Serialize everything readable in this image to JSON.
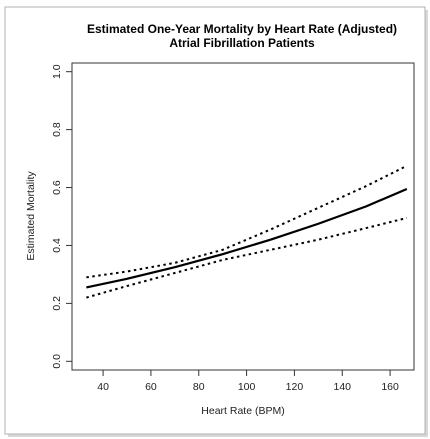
{
  "chart_data": {
    "type": "line",
    "title": [
      "Estimated One-Year Mortality by Heart Rate (Adjusted)",
      "Atrial Fibrillation Patients"
    ],
    "xlabel": "Heart Rate (BPM)",
    "ylabel": "Estimated Mortality",
    "xlim": [
      27,
      170
    ],
    "ylim": [
      -0.03,
      1.03
    ],
    "x_ticks": [
      40,
      60,
      80,
      100,
      120,
      140,
      160
    ],
    "y_ticks": [
      0.0,
      0.2,
      0.4,
      0.6,
      0.8,
      1.0
    ],
    "x_tick_labels": [
      "40",
      "60",
      "80",
      "100",
      "120",
      "140",
      "160"
    ],
    "y_tick_labels": [
      "0.0",
      "0.2",
      "0.4",
      "0.6",
      "0.8",
      "1.0"
    ],
    "grid": false,
    "series": [
      {
        "role": "estimate",
        "style": "solid",
        "x": [
          33,
          50,
          70,
          90,
          110,
          130,
          150,
          167
        ],
        "y": [
          0.255,
          0.285,
          0.325,
          0.37,
          0.42,
          0.475,
          0.535,
          0.595
        ]
      },
      {
        "role": "upper-ci",
        "style": "dotted",
        "x": [
          33,
          50,
          70,
          90,
          110,
          130,
          150,
          167
        ],
        "y": [
          0.29,
          0.31,
          0.34,
          0.385,
          0.455,
          0.53,
          0.605,
          0.675
        ]
      },
      {
        "role": "lower-ci",
        "style": "dotted",
        "x": [
          33,
          50,
          70,
          90,
          110,
          130,
          150,
          167
        ],
        "y": [
          0.22,
          0.26,
          0.305,
          0.35,
          0.385,
          0.42,
          0.46,
          0.495
        ]
      }
    ]
  }
}
